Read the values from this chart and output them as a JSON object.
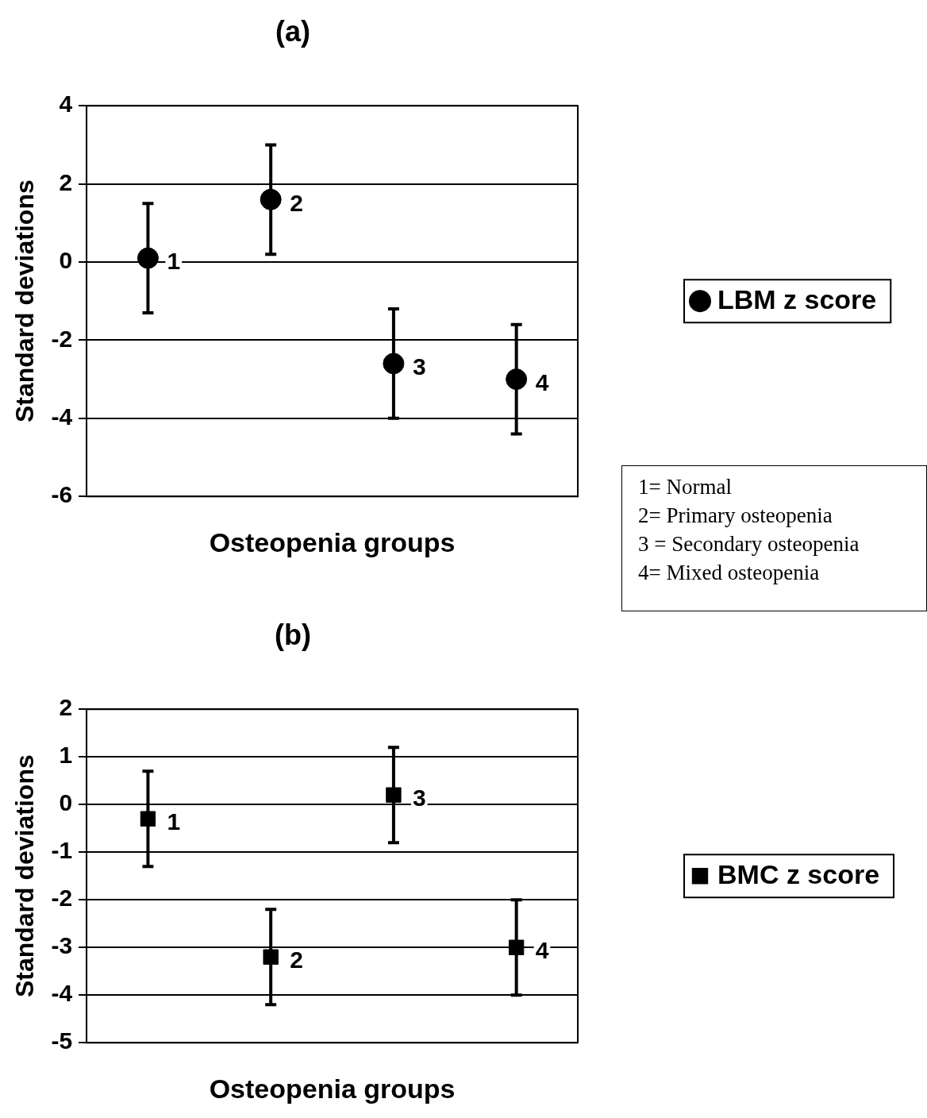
{
  "chart_data": [
    {
      "type": "scatter",
      "title": "(a)",
      "xlabel": "Osteopenia groups",
      "ylabel": "Standard deviations",
      "categories": [
        null,
        null,
        null,
        null
      ],
      "series": [
        {
          "name": "LBM z score",
          "color": "#000000",
          "values": [
            0.1,
            1.6,
            -2.6,
            -3.0
          ],
          "errors": [
            1.4,
            1.4,
            1.4,
            1.4
          ]
        }
      ],
      "ylim": [
        -6,
        4
      ],
      "yticks": [
        -6,
        -4,
        -2,
        0,
        2,
        4
      ],
      "grid": "y",
      "legend": "right",
      "marker": "circle",
      "tick_labels": "y",
      "annotations": [
        "1",
        "2",
        "3",
        "4",
        "1= Normal",
        "2= Primary osteopenia",
        "3 = Secondary osteopenia",
        "4= Mixed osteopenia"
      ]
    },
    {
      "type": "scatter",
      "title": "(b)",
      "xlabel": "Osteopenia groups",
      "ylabel": "Standard deviations",
      "categories": [
        null,
        null,
        null,
        null
      ],
      "series": [
        {
          "name": "BMC z score",
          "color": "#000000",
          "values": [
            -0.3,
            -3.2,
            0.2,
            -3.0
          ],
          "errors": [
            1.0,
            1.0,
            1.0,
            1.0
          ]
        }
      ],
      "ylim": [
        -5,
        2
      ],
      "yticks": [
        -5,
        -4,
        -3,
        -2,
        -1,
        0,
        1,
        2
      ],
      "grid": "y",
      "legend": "right",
      "marker": "square",
      "tick_labels": "y",
      "annotations": [
        "1",
        "2",
        "3",
        "4"
      ]
    }
  ]
}
